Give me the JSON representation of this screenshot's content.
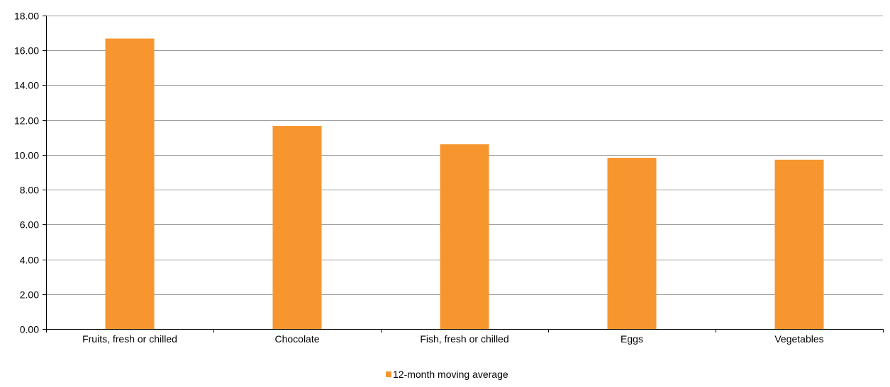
{
  "chart_data": {
    "type": "bar",
    "categories": [
      "Fruits, fresh or chilled",
      "Chocolate",
      "Fish, fresh or chilled",
      "Eggs",
      "Vegetables"
    ],
    "series": [
      {
        "name": "12-month moving average",
        "values": [
          16.68,
          11.66,
          10.61,
          9.83,
          9.72
        ],
        "color": "#f7962e"
      }
    ],
    "title": "",
    "xlabel": "",
    "ylabel": "",
    "ylim": [
      0,
      18
    ],
    "yticks": [
      "0.00",
      "2.00",
      "4.00",
      "6.00",
      "8.00",
      "10.00",
      "12.00",
      "14.00",
      "16.00",
      "18.00"
    ],
    "grid": true,
    "legend_position": "bottom",
    "colors": {
      "bar": "#f7962e",
      "grid": "#9a9a9a",
      "axis": "#000000"
    }
  }
}
